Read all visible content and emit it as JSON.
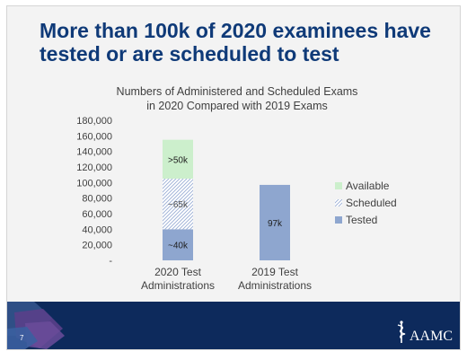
{
  "slide": {
    "title": "More than 100k of 2020 examinees have tested or are scheduled to test",
    "page_number": "7",
    "logo_text": "AAMC"
  },
  "chart_data": {
    "type": "bar",
    "stacked": true,
    "title": "Numbers of Administered and Scheduled Exams in 2020 Compared with 2019 Exams",
    "title_lines": [
      "Numbers of Administered and Scheduled Exams",
      "in 2020 Compared with 2019 Exams"
    ],
    "categories": [
      [
        "2020 Test",
        "Administrations"
      ],
      [
        "2019 Test",
        "Administrations"
      ]
    ],
    "ylim": [
      0,
      180000
    ],
    "yticks": [
      0,
      20000,
      40000,
      60000,
      80000,
      100000,
      120000,
      140000,
      160000,
      180000
    ],
    "ytick_labels": [
      "-",
      "20,000",
      "40,000",
      "60,000",
      "80,000",
      "100,000",
      "120,000",
      "140,000",
      "160,000",
      "180,000"
    ],
    "series": [
      {
        "name": "Tested",
        "values": [
          40000,
          97000
        ],
        "labels": [
          "~40k",
          "97k"
        ],
        "color": "#8ea6cf",
        "pattern": "solid"
      },
      {
        "name": "Scheduled",
        "values": [
          65000,
          0
        ],
        "labels": [
          "~65k",
          ""
        ],
        "color": "#aab8d8",
        "pattern": "hatch"
      },
      {
        "name": "Available",
        "values": [
          50000,
          0
        ],
        "labels": [
          ">50k",
          ""
        ],
        "color": "#ccefcc",
        "pattern": "solid"
      }
    ],
    "legend_order": [
      "Available",
      "Scheduled",
      "Tested"
    ],
    "legend_position": "right",
    "grid": false
  }
}
